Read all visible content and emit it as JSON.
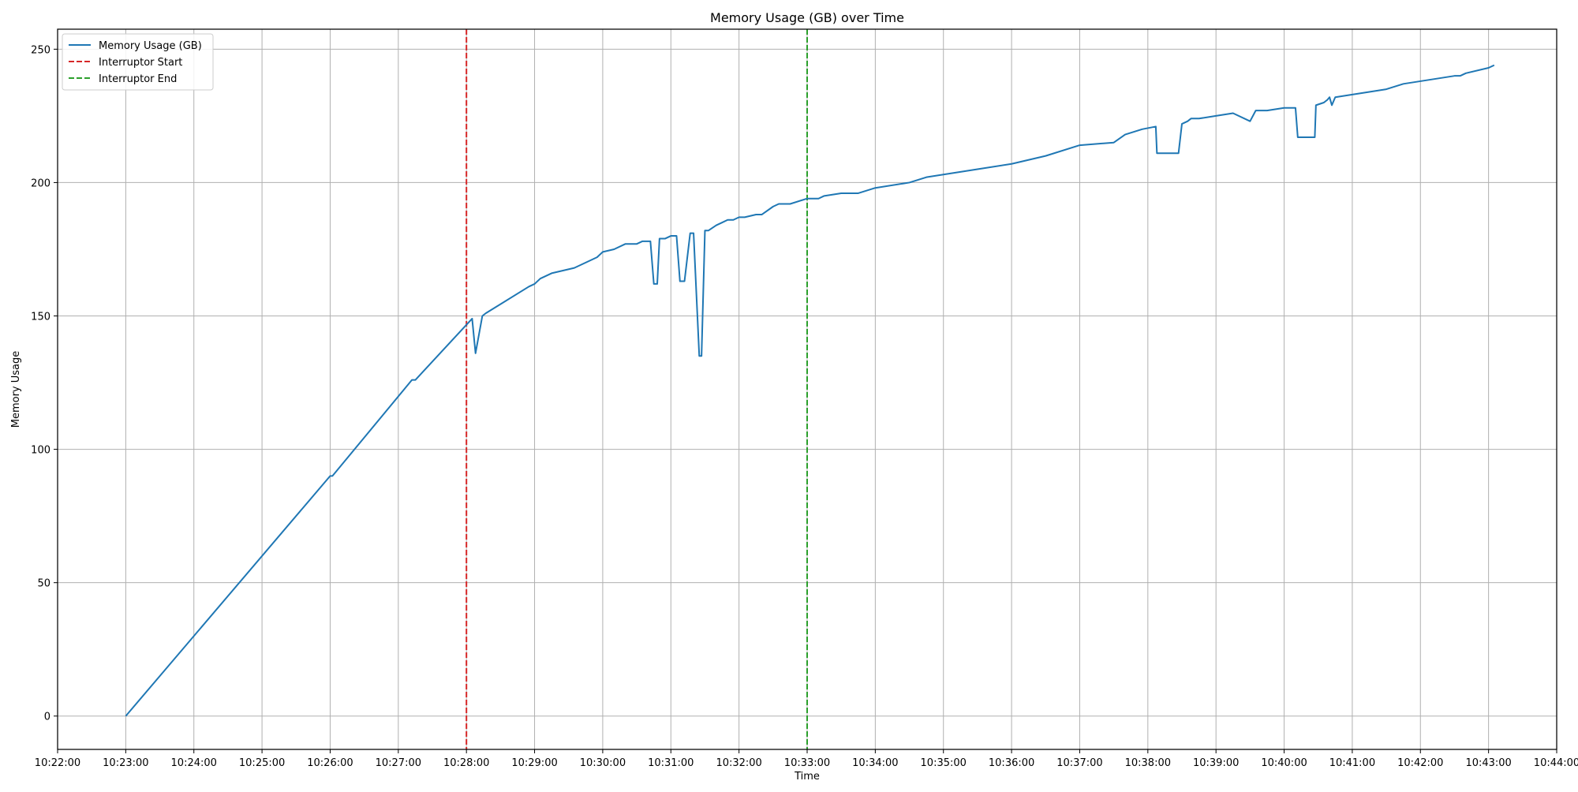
{
  "chart_data": {
    "type": "line",
    "title": "Memory Usage (GB) over Time",
    "xlabel": "Time",
    "ylabel": "Memory Usage",
    "xlim": [
      "10:22:00",
      "10:44:00"
    ],
    "ylim": [
      -12.5,
      257.5
    ],
    "x_ticks": [
      "10:22:00",
      "10:23:00",
      "10:24:00",
      "10:25:00",
      "10:26:00",
      "10:27:00",
      "10:28:00",
      "10:29:00",
      "10:30:00",
      "10:31:00",
      "10:32:00",
      "10:33:00",
      "10:34:00",
      "10:35:00",
      "10:36:00",
      "10:37:00",
      "10:38:00",
      "10:39:00",
      "10:40:00",
      "10:41:00",
      "10:42:00",
      "10:43:00",
      "10:44:00"
    ],
    "y_ticks": [
      0,
      50,
      100,
      150,
      200,
      250
    ],
    "grid": true,
    "legend_position": "top-left",
    "series": [
      {
        "name": "Memory Usage (GB)",
        "color": "#1f77b4",
        "style": "solid",
        "x": [
          "10:23:00",
          "10:26:00",
          "10:26:02",
          "10:27:12",
          "10:27:15",
          "10:28:05",
          "10:28:08",
          "10:28:14",
          "10:28:17",
          "10:28:55",
          "10:29:00",
          "10:29:05",
          "10:29:15",
          "10:29:25",
          "10:29:35",
          "10:29:45",
          "10:29:55",
          "10:30:00",
          "10:30:10",
          "10:30:20",
          "10:30:30",
          "10:30:35",
          "10:30:42",
          "10:30:45",
          "10:30:48",
          "10:30:50",
          "10:30:55",
          "10:31:00",
          "10:31:05",
          "10:31:08",
          "10:31:12",
          "10:31:17",
          "10:31:20",
          "10:31:25",
          "10:31:27",
          "10:31:30",
          "10:31:33",
          "10:31:40",
          "10:31:45",
          "10:31:50",
          "10:31:55",
          "10:32:00",
          "10:32:05",
          "10:32:15",
          "10:32:20",
          "10:32:30",
          "10:32:35",
          "10:32:45",
          "10:33:00",
          "10:33:10",
          "10:33:15",
          "10:33:30",
          "10:33:45",
          "10:34:00",
          "10:34:30",
          "10:34:45",
          "10:35:00",
          "10:35:30",
          "10:36:00",
          "10:36:30",
          "10:37:00",
          "10:37:30",
          "10:37:40",
          "10:37:55",
          "10:38:07",
          "10:38:08",
          "10:38:27",
          "10:38:30",
          "10:38:35",
          "10:38:38",
          "10:38:45",
          "10:39:00",
          "10:39:15",
          "10:39:30",
          "10:39:35",
          "10:39:45",
          "10:40:00",
          "10:40:10",
          "10:40:12",
          "10:40:27",
          "10:40:28",
          "10:40:35",
          "10:40:38",
          "10:40:40",
          "10:40:42",
          "10:40:45",
          "10:41:00",
          "10:41:15",
          "10:41:30",
          "10:41:45",
          "10:42:00",
          "10:42:15",
          "10:42:30",
          "10:42:35",
          "10:42:40",
          "10:43:00",
          "10:43:05"
        ],
        "y": [
          0,
          90,
          90,
          126,
          126,
          149,
          136,
          150,
          151,
          161,
          162,
          164,
          166,
          167,
          168,
          170,
          172,
          174,
          175,
          177,
          177,
          178,
          178,
          162,
          162,
          179,
          179,
          180,
          180,
          163,
          163,
          181,
          181,
          135,
          135,
          182,
          182,
          184,
          185,
          186,
          186,
          187,
          187,
          188,
          188,
          191,
          192,
          192,
          194,
          194,
          195,
          196,
          196,
          198,
          200,
          202,
          203,
          205,
          207,
          210,
          214,
          215,
          218,
          220,
          221,
          211,
          211,
          222,
          223,
          224,
          224,
          225,
          226,
          223,
          227,
          227,
          228,
          228,
          217,
          217,
          229,
          230,
          231,
          232,
          229,
          232,
          233,
          234,
          235,
          237,
          238,
          239,
          240,
          240,
          241,
          243,
          244
        ]
      }
    ],
    "markers": [
      {
        "name": "Interruptor Start",
        "x": "10:28:00",
        "color": "#d62728",
        "style": "dashed"
      },
      {
        "name": "Interruptor End",
        "x": "10:33:00",
        "color": "#2ca02c",
        "style": "dashed"
      }
    ]
  }
}
